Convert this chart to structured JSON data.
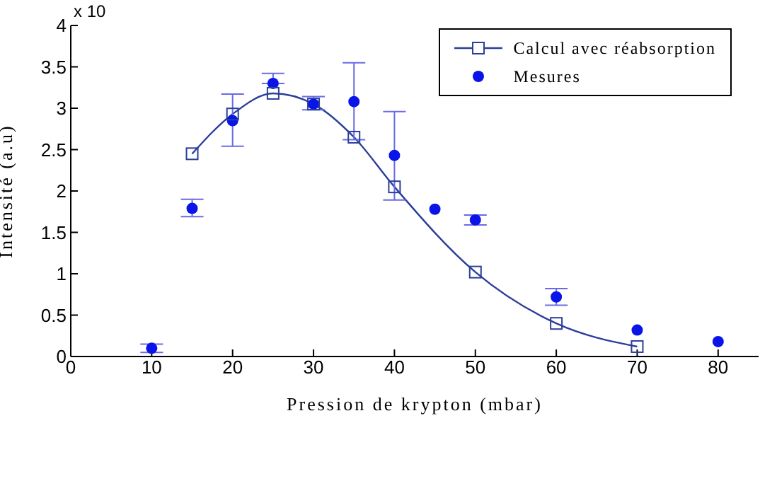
{
  "chart_data": {
    "type": "line",
    "xlabel": "Pression de krypton (mbar)",
    "ylabel": "Intensité (a.u)",
    "annotations": [
      "x 10"
    ],
    "xlim": [
      0,
      85
    ],
    "xticks": [
      0,
      10,
      20,
      30,
      40,
      50,
      60,
      70,
      80
    ],
    "ylim": [
      0,
      4
    ],
    "yticks": [
      0,
      0.5,
      1,
      1.5,
      2,
      2.5,
      3,
      3.5,
      4
    ],
    "legend": "top right",
    "grid": false,
    "series": [
      {
        "name": "Calcul avec réabsorption",
        "color": "#2b3f9a",
        "marker": "square",
        "x": [
          15,
          20,
          25,
          30,
          35,
          40,
          50,
          60,
          70
        ],
        "values": [
          2.45,
          2.93,
          3.18,
          3.05,
          2.65,
          2.05,
          1.02,
          0.4,
          0.12
        ]
      },
      {
        "name": "Mesures",
        "type": "scatter",
        "color": "#0a14e8",
        "marker": "circle",
        "x": [
          10,
          15,
          20,
          25,
          30,
          35,
          40,
          45,
          50,
          60,
          70,
          80
        ],
        "values": [
          0.1,
          1.79,
          2.85,
          3.3,
          3.05,
          3.08,
          2.43,
          1.78,
          1.65,
          0.72,
          0.32,
          0.18
        ],
        "errors": [
          [
            0.05,
            0.15
          ],
          [
            1.69,
            1.9
          ],
          [
            2.54,
            3.17
          ],
          [
            3.3,
            3.42
          ],
          [
            2.98,
            3.14
          ],
          [
            2.62,
            3.55
          ],
          [
            1.89,
            2.96
          ],
          null,
          [
            1.59,
            1.71
          ],
          [
            0.62,
            0.82
          ],
          null,
          null
        ]
      }
    ]
  }
}
